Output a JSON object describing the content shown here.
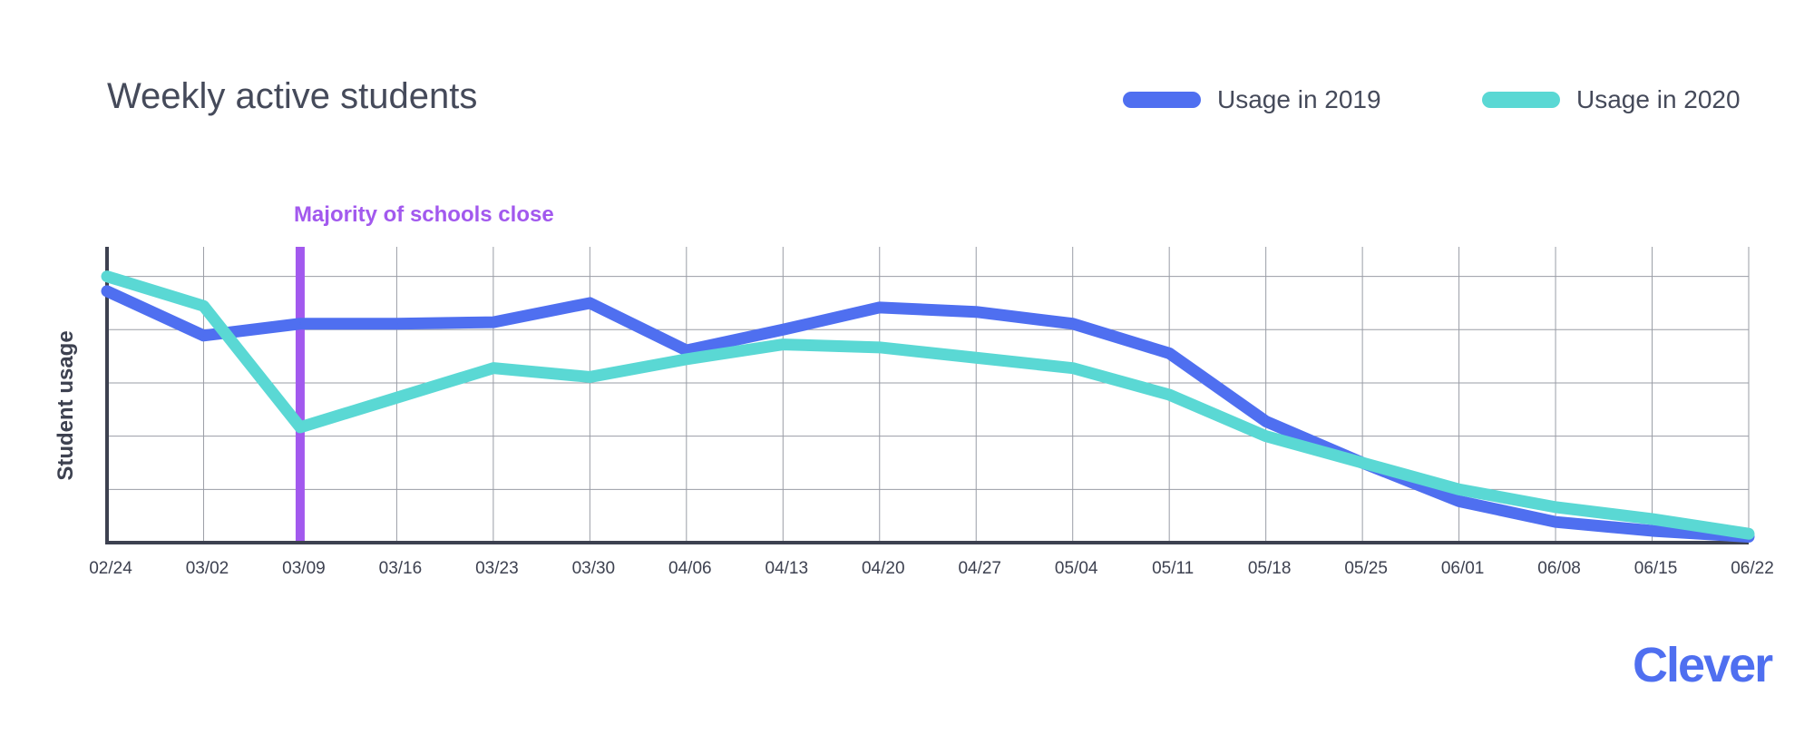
{
  "chart_data": {
    "type": "line",
    "title": "Weekly active students",
    "xlabel": "",
    "ylabel": "Student usage",
    "categories": [
      "02/24",
      "03/02",
      "03/09",
      "03/16",
      "03/23",
      "03/30",
      "04/06",
      "04/13",
      "04/20",
      "04/27",
      "05/04",
      "05/11",
      "05/18",
      "05/25",
      "06/01",
      "06/08",
      "06/15",
      "06/22"
    ],
    "ylim": [
      0,
      100
    ],
    "grid": true,
    "legend_position": "top-right",
    "series": [
      {
        "name": "Usage in 2019",
        "color": "#4f6ff0",
        "values": [
          85,
          70,
          74,
          74,
          74.5,
          81,
          65,
          72,
          79.5,
          78,
          74,
          64,
          41,
          27,
          14,
          7,
          4,
          2
        ]
      },
      {
        "name": "Usage in 2020",
        "color": "#5ad8d4",
        "values": [
          90,
          80,
          39,
          49,
          59,
          56,
          62,
          67,
          66,
          62.5,
          59,
          50,
          36,
          27,
          18,
          12,
          8,
          3
        ]
      }
    ],
    "annotations": [
      {
        "text": "Majority of schools close",
        "x": "03/09",
        "color": "#a259ee"
      }
    ]
  },
  "logo_text": "Clever",
  "logo_color": "#4f6ff0"
}
